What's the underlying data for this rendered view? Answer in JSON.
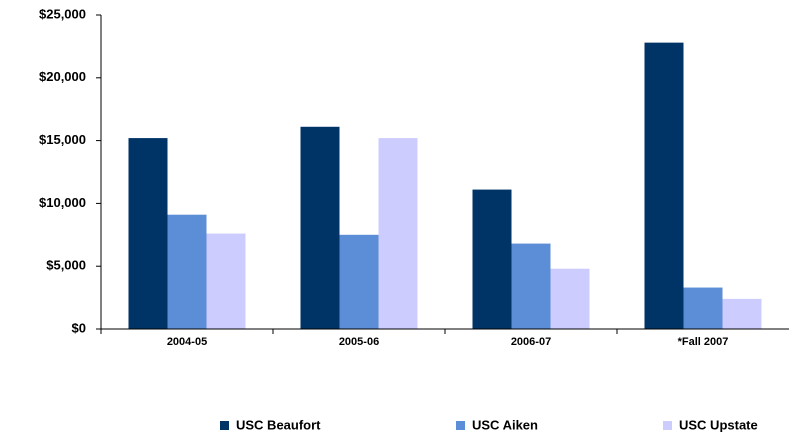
{
  "chart_data": {
    "type": "bar",
    "categories": [
      "2004-05",
      "2005-06",
      "2006-07",
      "*Fall 2007"
    ],
    "series": [
      {
        "name": "USC Beaufort",
        "color": "#003366",
        "values": [
          15200,
          16100,
          11100,
          22800
        ]
      },
      {
        "name": "USC Aiken",
        "color": "#5b8ed6",
        "values": [
          9100,
          7500,
          6800,
          3300
        ]
      },
      {
        "name": "USC Upstate",
        "color": "#ccccff",
        "values": [
          7600,
          15200,
          4800,
          2400
        ]
      }
    ],
    "ylim": [
      0,
      25000
    ],
    "yticks": [
      {
        "value": 0,
        "label": "$0"
      },
      {
        "value": 5000,
        "label": "$5,000"
      },
      {
        "value": 10000,
        "label": "$10,000"
      },
      {
        "value": 15000,
        "label": "$15,000"
      },
      {
        "value": 20000,
        "label": "$20,000"
      },
      {
        "value": 25000,
        "label": "$25,000"
      }
    ],
    "grid": false,
    "legend": "bottom"
  }
}
